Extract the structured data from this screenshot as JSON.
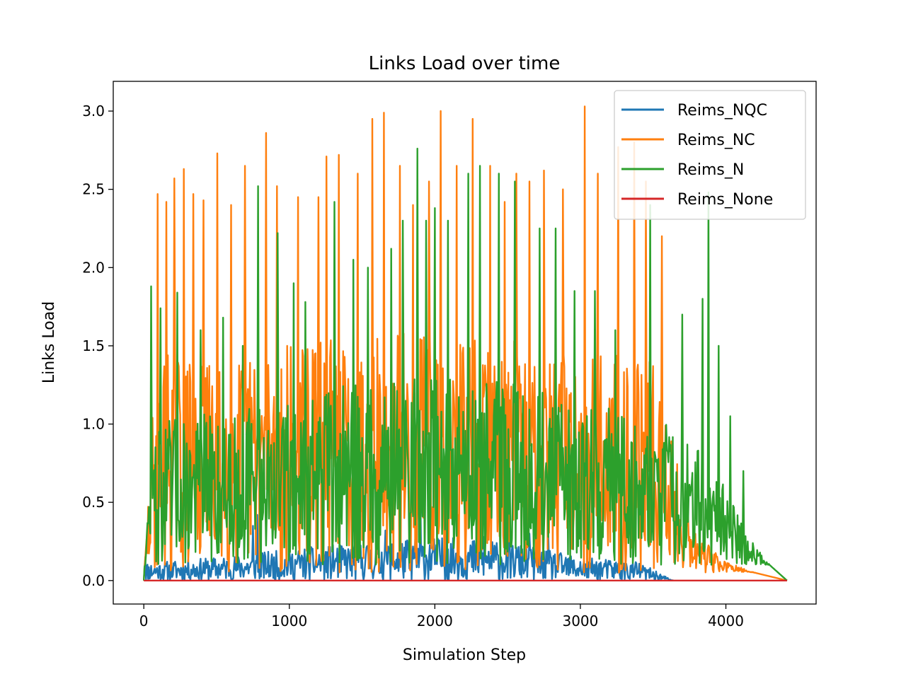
{
  "chart_data": {
    "type": "line",
    "title": "Links Load over time",
    "xlabel": "Simulation Step",
    "ylabel": "Links Load",
    "xlim": [
      -210,
      4620
    ],
    "ylim": [
      -0.15,
      3.19
    ],
    "xticks": [
      0,
      1000,
      2000,
      3000,
      4000
    ],
    "xtick_labels": [
      "0",
      "1000",
      "2000",
      "3000",
      "4000"
    ],
    "yticks": [
      0.0,
      0.5,
      1.0,
      1.5,
      2.0,
      2.5,
      3.0
    ],
    "ytick_labels": [
      "0.0",
      "0.5",
      "1.0",
      "1.5",
      "2.0",
      "2.5",
      "3.0"
    ],
    "grid": false,
    "legend_position": "top-right",
    "series": [
      {
        "name": "Reims_NC",
        "color": "#ff7f0e",
        "x_range": [
          0,
          4420
        ],
        "envelope": [
          [
            0,
            0
          ],
          [
            60,
            1.1
          ],
          [
            150,
            1.5
          ],
          [
            400,
            1.4
          ],
          [
            800,
            1.5
          ],
          [
            1200,
            1.55
          ],
          [
            1600,
            1.6
          ],
          [
            2000,
            1.6
          ],
          [
            2400,
            1.55
          ],
          [
            2800,
            1.5
          ],
          [
            3200,
            1.5
          ],
          [
            3500,
            1.4
          ],
          [
            3650,
            0.9
          ],
          [
            3800,
            0.3
          ],
          [
            4000,
            0.12
          ],
          [
            4200,
            0.05
          ],
          [
            4420,
            0
          ]
        ],
        "peaks": [
          [
            95,
            2.47
          ],
          [
            155,
            2.42
          ],
          [
            210,
            2.57
          ],
          [
            275,
            2.63
          ],
          [
            340,
            2.47
          ],
          [
            410,
            2.43
          ],
          [
            505,
            2.73
          ],
          [
            600,
            2.4
          ],
          [
            695,
            2.65
          ],
          [
            840,
            2.86
          ],
          [
            915,
            2.52
          ],
          [
            1060,
            2.45
          ],
          [
            1200,
            2.45
          ],
          [
            1255,
            2.71
          ],
          [
            1340,
            2.72
          ],
          [
            1470,
            2.6
          ],
          [
            1570,
            2.95
          ],
          [
            1650,
            2.99
          ],
          [
            1760,
            2.65
          ],
          [
            1850,
            2.4
          ],
          [
            1960,
            2.55
          ],
          [
            2040,
            3.0
          ],
          [
            2150,
            2.65
          ],
          [
            2260,
            2.95
          ],
          [
            2380,
            2.65
          ],
          [
            2480,
            2.42
          ],
          [
            2560,
            2.6
          ],
          [
            2650,
            2.55
          ],
          [
            2750,
            2.62
          ],
          [
            2880,
            2.5
          ],
          [
            3030,
            3.03
          ],
          [
            3120,
            2.6
          ],
          [
            3260,
            2.77
          ],
          [
            3370,
            2.8
          ],
          [
            3450,
            2.55
          ],
          [
            3560,
            2.2
          ]
        ],
        "floor": 0.05
      },
      {
        "name": "Reims_N",
        "color": "#2ca02c",
        "x_range": [
          0,
          4420
        ],
        "envelope": [
          [
            0,
            0
          ],
          [
            50,
            0.9
          ],
          [
            200,
            1.05
          ],
          [
            600,
            1.1
          ],
          [
            1000,
            1.15
          ],
          [
            1400,
            1.25
          ],
          [
            1800,
            1.35
          ],
          [
            2000,
            1.35
          ],
          [
            2400,
            1.3
          ],
          [
            2800,
            1.2
          ],
          [
            3200,
            1.1
          ],
          [
            3600,
            1.0
          ],
          [
            3800,
            0.85
          ],
          [
            3950,
            0.7
          ],
          [
            4050,
            0.5
          ],
          [
            4150,
            0.3
          ],
          [
            4300,
            0.1
          ],
          [
            4420,
            0
          ]
        ],
        "peaks": [
          [
            50,
            1.88
          ],
          [
            115,
            1.74
          ],
          [
            230,
            1.84
          ],
          [
            390,
            1.6
          ],
          [
            545,
            1.68
          ],
          [
            680,
            1.5
          ],
          [
            785,
            2.52
          ],
          [
            920,
            2.22
          ],
          [
            1030,
            1.9
          ],
          [
            1110,
            1.78
          ],
          [
            1310,
            2.42
          ],
          [
            1440,
            2.05
          ],
          [
            1540,
            2.0
          ],
          [
            1700,
            2.12
          ],
          [
            1780,
            2.3
          ],
          [
            1880,
            2.76
          ],
          [
            1940,
            2.3
          ],
          [
            2000,
            2.38
          ],
          [
            2090,
            2.3
          ],
          [
            2230,
            2.6
          ],
          [
            2310,
            2.65
          ],
          [
            2440,
            2.6
          ],
          [
            2550,
            2.55
          ],
          [
            2720,
            2.25
          ],
          [
            2830,
            2.25
          ],
          [
            2960,
            1.85
          ],
          [
            3100,
            1.85
          ],
          [
            3240,
            1.6
          ],
          [
            3480,
            2.4
          ],
          [
            3700,
            1.7
          ],
          [
            3840,
            1.8
          ],
          [
            3880,
            2.48
          ],
          [
            3950,
            1.5
          ],
          [
            4030,
            1.05
          ],
          [
            4120,
            0.7
          ]
        ],
        "floor": 0.1
      },
      {
        "name": "Reims_NQC",
        "color": "#1f77b4",
        "x_range": [
          0,
          3640
        ],
        "envelope": [
          [
            0,
            0.12
          ],
          [
            100,
            0.12
          ],
          [
            500,
            0.15
          ],
          [
            1000,
            0.2
          ],
          [
            1500,
            0.25
          ],
          [
            2000,
            0.28
          ],
          [
            2500,
            0.25
          ],
          [
            3000,
            0.15
          ],
          [
            3400,
            0.12
          ],
          [
            3640,
            0
          ]
        ],
        "peaks": [
          [
            10,
            0.15
          ],
          [
            750,
            0.35
          ],
          [
            780,
            0.42
          ],
          [
            1230,
            0.37
          ],
          [
            1660,
            0.32
          ],
          [
            1900,
            0.65
          ],
          [
            2080,
            0.55
          ],
          [
            2340,
            0.28
          ],
          [
            2650,
            0.3
          ],
          [
            2780,
            0.28
          ]
        ],
        "floor": 0.0
      },
      {
        "name": "Reims_None",
        "color": "#d62728",
        "x_range": [
          0,
          4420
        ],
        "constant": 0
      }
    ]
  }
}
